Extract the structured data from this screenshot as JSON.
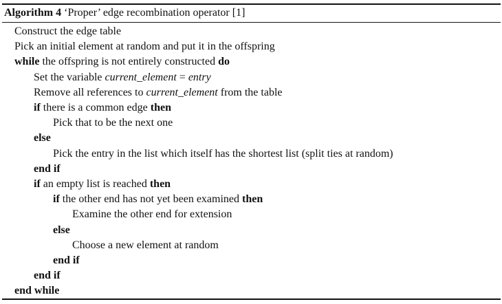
{
  "caption": {
    "label": "Algorithm 4",
    "title": "‘Proper’ edge recombination operator [1]"
  },
  "lines": [
    {
      "indent": 0,
      "parts": [
        {
          "t": "Construct the edge table"
        }
      ]
    },
    {
      "indent": 0,
      "parts": [
        {
          "t": "Pick an initial element at random and put it in the offspring"
        }
      ]
    },
    {
      "indent": 0,
      "parts": [
        {
          "t": "while",
          "s": "kw"
        },
        {
          "t": " the offspring is not entirely constructed "
        },
        {
          "t": "do",
          "s": "kw"
        }
      ]
    },
    {
      "indent": 1,
      "parts": [
        {
          "t": "Set the variable "
        },
        {
          "t": "current_element",
          "s": "it"
        },
        {
          "t": " = "
        },
        {
          "t": "entry",
          "s": "it"
        }
      ]
    },
    {
      "indent": 1,
      "parts": [
        {
          "t": "Remove all references to "
        },
        {
          "t": "current_element",
          "s": "it"
        },
        {
          "t": " from the table"
        }
      ]
    },
    {
      "indent": 1,
      "parts": [
        {
          "t": "if",
          "s": "kw"
        },
        {
          "t": " there is a common edge "
        },
        {
          "t": "then",
          "s": "kw"
        }
      ]
    },
    {
      "indent": 2,
      "parts": [
        {
          "t": "Pick that to be the next one"
        }
      ]
    },
    {
      "indent": 1,
      "parts": [
        {
          "t": "else",
          "s": "kw"
        }
      ]
    },
    {
      "indent": 2,
      "parts": [
        {
          "t": "Pick the entry in the list which itself has the shortest list (split ties at random)"
        }
      ]
    },
    {
      "indent": 1,
      "parts": [
        {
          "t": "end if",
          "s": "kw"
        }
      ]
    },
    {
      "indent": 1,
      "parts": [
        {
          "t": "if",
          "s": "kw"
        },
        {
          "t": " an empty list is reached "
        },
        {
          "t": "then",
          "s": "kw"
        }
      ]
    },
    {
      "indent": 2,
      "parts": [
        {
          "t": "if",
          "s": "kw"
        },
        {
          "t": " the other end has not yet been examined "
        },
        {
          "t": "then",
          "s": "kw"
        }
      ]
    },
    {
      "indent": 3,
      "parts": [
        {
          "t": "Examine the other end for extension"
        }
      ]
    },
    {
      "indent": 2,
      "parts": [
        {
          "t": "else",
          "s": "kw"
        }
      ]
    },
    {
      "indent": 3,
      "parts": [
        {
          "t": "Choose a new element at random"
        }
      ]
    },
    {
      "indent": 2,
      "parts": [
        {
          "t": "end if",
          "s": "kw"
        }
      ]
    },
    {
      "indent": 1,
      "parts": [
        {
          "t": "end if",
          "s": "kw"
        }
      ]
    },
    {
      "indent": 0,
      "parts": [
        {
          "t": "end while",
          "s": "kw"
        }
      ]
    }
  ]
}
